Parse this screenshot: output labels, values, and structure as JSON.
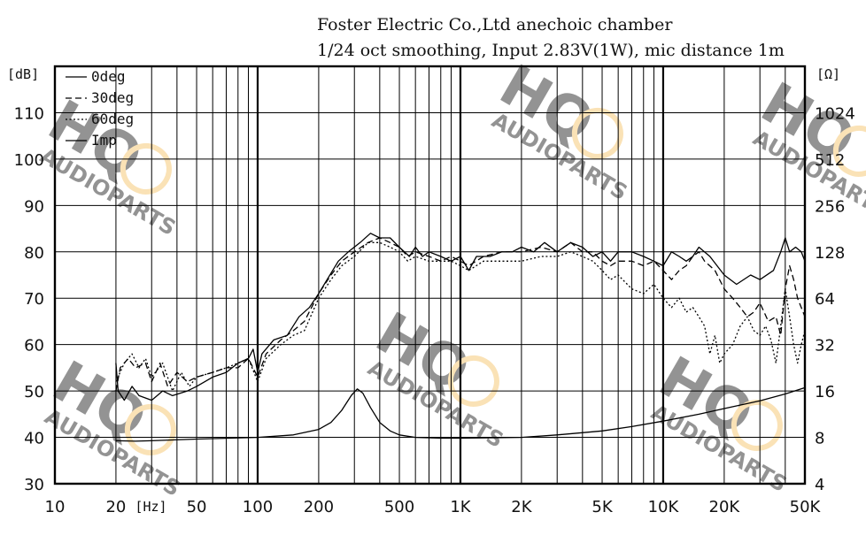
{
  "chart_data": {
    "type": "line",
    "title_lines": [
      "Foster Electric Co.,Ltd anechoic chamber",
      "1/24 oct smoothing, Input 2.83V(1W), mic distance 1m"
    ],
    "x_axis": {
      "scale": "log",
      "range": [
        10,
        50000
      ],
      "unit_label": "[Hz]",
      "tick_values": [
        10,
        20,
        50,
        100,
        200,
        500,
        1000,
        2000,
        5000,
        10000,
        20000,
        50000
      ],
      "tick_labels": [
        "10",
        "20",
        "50",
        "100",
        "200",
        "500",
        "1K",
        "2K",
        "5K",
        "10K",
        "20K",
        "50K"
      ]
    },
    "y_left": {
      "unit_label": "[dB]",
      "range": [
        30,
        120
      ],
      "tick_values": [
        30,
        40,
        50,
        60,
        70,
        80,
        90,
        100,
        110
      ],
      "tick_labels": [
        "30",
        "40",
        "50",
        "60",
        "70",
        "80",
        "90",
        "100",
        "110"
      ]
    },
    "y_right": {
      "unit_label": "[Ω]",
      "scale": "log2",
      "range": [
        4,
        2048
      ],
      "tick_values": [
        4,
        8,
        16,
        32,
        64,
        128,
        256,
        512,
        1024
      ],
      "tick_labels": [
        "4",
        "8",
        "16",
        "32",
        "64",
        "128",
        "256",
        "512",
        "1024"
      ]
    },
    "grid": true,
    "legend_position": "top-left",
    "series": [
      {
        "name": "0deg",
        "axis": "left",
        "style": "solid",
        "points": [
          [
            20,
            56
          ],
          [
            20.5,
            50
          ],
          [
            22,
            48
          ],
          [
            24,
            51
          ],
          [
            26,
            49
          ],
          [
            30,
            48
          ],
          [
            34,
            50
          ],
          [
            38,
            49
          ],
          [
            45,
            50
          ],
          [
            50,
            51
          ],
          [
            60,
            53
          ],
          [
            70,
            54
          ],
          [
            80,
            56
          ],
          [
            90,
            57
          ],
          [
            95,
            59
          ],
          [
            100,
            54
          ],
          [
            105,
            58
          ],
          [
            120,
            61
          ],
          [
            140,
            62
          ],
          [
            160,
            66
          ],
          [
            180,
            68
          ],
          [
            200,
            71
          ],
          [
            220,
            74
          ],
          [
            250,
            78
          ],
          [
            280,
            80
          ],
          [
            320,
            82
          ],
          [
            360,
            84
          ],
          [
            400,
            83
          ],
          [
            450,
            83
          ],
          [
            500,
            81
          ],
          [
            560,
            79
          ],
          [
            600,
            81
          ],
          [
            650,
            79
          ],
          [
            700,
            80
          ],
          [
            800,
            79
          ],
          [
            900,
            78
          ],
          [
            1000,
            79
          ],
          [
            1100,
            76
          ],
          [
            1200,
            79
          ],
          [
            1400,
            79
          ],
          [
            1600,
            80
          ],
          [
            1800,
            80
          ],
          [
            2000,
            81
          ],
          [
            2300,
            80
          ],
          [
            2600,
            82
          ],
          [
            3000,
            80
          ],
          [
            3500,
            82
          ],
          [
            4000,
            81
          ],
          [
            4500,
            79
          ],
          [
            5000,
            80
          ],
          [
            5500,
            78
          ],
          [
            6000,
            80
          ],
          [
            7000,
            80
          ],
          [
            8000,
            79
          ],
          [
            9000,
            78
          ],
          [
            10000,
            77
          ],
          [
            11000,
            80
          ],
          [
            12000,
            79
          ],
          [
            13000,
            78
          ],
          [
            14000,
            79
          ],
          [
            15000,
            81
          ],
          [
            17000,
            79
          ],
          [
            20000,
            75
          ],
          [
            23000,
            73
          ],
          [
            27000,
            75
          ],
          [
            30000,
            74
          ],
          [
            35000,
            76
          ],
          [
            38000,
            80
          ],
          [
            40000,
            83
          ],
          [
            42000,
            80
          ],
          [
            45000,
            81
          ],
          [
            48000,
            80
          ],
          [
            50000,
            78
          ]
        ]
      },
      {
        "name": "30deg",
        "axis": "left",
        "style": "dashed",
        "points": [
          [
            20,
            50
          ],
          [
            21,
            55
          ],
          [
            23,
            57
          ],
          [
            25,
            55
          ],
          [
            28,
            56
          ],
          [
            30,
            52
          ],
          [
            33,
            56
          ],
          [
            36,
            51
          ],
          [
            40,
            54
          ],
          [
            45,
            52
          ],
          [
            50,
            53
          ],
          [
            60,
            54
          ],
          [
            70,
            55
          ],
          [
            80,
            55
          ],
          [
            90,
            57
          ],
          [
            100,
            53
          ],
          [
            110,
            58
          ],
          [
            130,
            61
          ],
          [
            150,
            63
          ],
          [
            170,
            65
          ],
          [
            200,
            71
          ],
          [
            230,
            75
          ],
          [
            260,
            78
          ],
          [
            300,
            80
          ],
          [
            350,
            82
          ],
          [
            400,
            83
          ],
          [
            450,
            82
          ],
          [
            500,
            81
          ],
          [
            550,
            79
          ],
          [
            600,
            80
          ],
          [
            700,
            79
          ],
          [
            800,
            78
          ],
          [
            900,
            79
          ],
          [
            1000,
            78
          ],
          [
            1100,
            77
          ],
          [
            1300,
            79
          ],
          [
            1600,
            80
          ],
          [
            2000,
            80
          ],
          [
            2500,
            81
          ],
          [
            3000,
            80
          ],
          [
            3500,
            82
          ],
          [
            4000,
            80
          ],
          [
            4500,
            80
          ],
          [
            5000,
            78
          ],
          [
            5500,
            77
          ],
          [
            6000,
            78
          ],
          [
            7000,
            78
          ],
          [
            8000,
            77
          ],
          [
            9000,
            78
          ],
          [
            10000,
            76
          ],
          [
            11000,
            74
          ],
          [
            12000,
            76
          ],
          [
            13000,
            77
          ],
          [
            14000,
            79
          ],
          [
            15000,
            80
          ],
          [
            16000,
            78
          ],
          [
            18000,
            76
          ],
          [
            20000,
            72
          ],
          [
            22000,
            70
          ],
          [
            24000,
            68
          ],
          [
            26000,
            66
          ],
          [
            28000,
            67
          ],
          [
            30000,
            69
          ],
          [
            33000,
            65
          ],
          [
            36000,
            66
          ],
          [
            38000,
            62
          ],
          [
            40000,
            72
          ],
          [
            42000,
            77
          ],
          [
            44000,
            74
          ],
          [
            46000,
            70
          ],
          [
            48000,
            68
          ],
          [
            50000,
            66
          ]
        ]
      },
      {
        "name": "60deg",
        "axis": "left",
        "style": "dotted",
        "points": [
          [
            20,
            52
          ],
          [
            22,
            56
          ],
          [
            24,
            58
          ],
          [
            26,
            55
          ],
          [
            28,
            57
          ],
          [
            30,
            53
          ],
          [
            34,
            56
          ],
          [
            38,
            50
          ],
          [
            42,
            54
          ],
          [
            46,
            51
          ],
          [
            50,
            53
          ],
          [
            60,
            54
          ],
          [
            70,
            55
          ],
          [
            80,
            56
          ],
          [
            90,
            57
          ],
          [
            100,
            52
          ],
          [
            110,
            57
          ],
          [
            130,
            60
          ],
          [
            150,
            62
          ],
          [
            170,
            63
          ],
          [
            200,
            70
          ],
          [
            230,
            74
          ],
          [
            260,
            77
          ],
          [
            300,
            79
          ],
          [
            350,
            82
          ],
          [
            400,
            82
          ],
          [
            450,
            81
          ],
          [
            500,
            80
          ],
          [
            550,
            78
          ],
          [
            600,
            79
          ],
          [
            700,
            78
          ],
          [
            800,
            78
          ],
          [
            900,
            78
          ],
          [
            1000,
            77
          ],
          [
            1100,
            76
          ],
          [
            1300,
            78
          ],
          [
            1600,
            78
          ],
          [
            2000,
            78
          ],
          [
            2500,
            79
          ],
          [
            3000,
            79
          ],
          [
            3500,
            80
          ],
          [
            4000,
            79
          ],
          [
            4500,
            78
          ],
          [
            5000,
            76
          ],
          [
            5500,
            74
          ],
          [
            6000,
            75
          ],
          [
            7000,
            72
          ],
          [
            8000,
            71
          ],
          [
            9000,
            73
          ],
          [
            10000,
            70
          ],
          [
            11000,
            68
          ],
          [
            12000,
            70
          ],
          [
            13000,
            67
          ],
          [
            14000,
            68
          ],
          [
            15000,
            66
          ],
          [
            16000,
            64
          ],
          [
            17000,
            58
          ],
          [
            18000,
            62
          ],
          [
            19000,
            56
          ],
          [
            20000,
            58
          ],
          [
            22000,
            60
          ],
          [
            24000,
            64
          ],
          [
            26000,
            66
          ],
          [
            28000,
            63
          ],
          [
            30000,
            62
          ],
          [
            32000,
            64
          ],
          [
            34000,
            61
          ],
          [
            36000,
            56
          ],
          [
            38000,
            64
          ],
          [
            40000,
            72
          ],
          [
            42000,
            66
          ],
          [
            44000,
            60
          ],
          [
            46000,
            56
          ],
          [
            48000,
            60
          ],
          [
            50000,
            63
          ]
        ]
      },
      {
        "name": "Imp",
        "axis": "right",
        "style": "solid",
        "points": [
          [
            20,
            7.6
          ],
          [
            25,
            7.55
          ],
          [
            30,
            7.6
          ],
          [
            50,
            7.8
          ],
          [
            100,
            8.0
          ],
          [
            150,
            8.3
          ],
          [
            200,
            9.0
          ],
          [
            230,
            10.0
          ],
          [
            260,
            12.0
          ],
          [
            290,
            15.0
          ],
          [
            310,
            16.5
          ],
          [
            330,
            15.5
          ],
          [
            360,
            12.5
          ],
          [
            400,
            10.0
          ],
          [
            450,
            8.8
          ],
          [
            500,
            8.3
          ],
          [
            600,
            8.0
          ],
          [
            800,
            7.9
          ],
          [
            1000,
            7.9
          ],
          [
            1500,
            7.95
          ],
          [
            2000,
            8.0
          ],
          [
            3000,
            8.3
          ],
          [
            5000,
            8.8
          ],
          [
            7000,
            9.4
          ],
          [
            10000,
            10.2
          ],
          [
            15000,
            11.3
          ],
          [
            20000,
            12.3
          ],
          [
            30000,
            13.8
          ],
          [
            40000,
            15.3
          ],
          [
            50000,
            16.8
          ]
        ]
      }
    ]
  },
  "watermark": {
    "logo_text": "HQ",
    "sub_text": "AUDIOPARTS",
    "color": "#f6c060"
  },
  "colors": {
    "line": "#000000",
    "grid": "#000000",
    "background": "#ffffff"
  }
}
